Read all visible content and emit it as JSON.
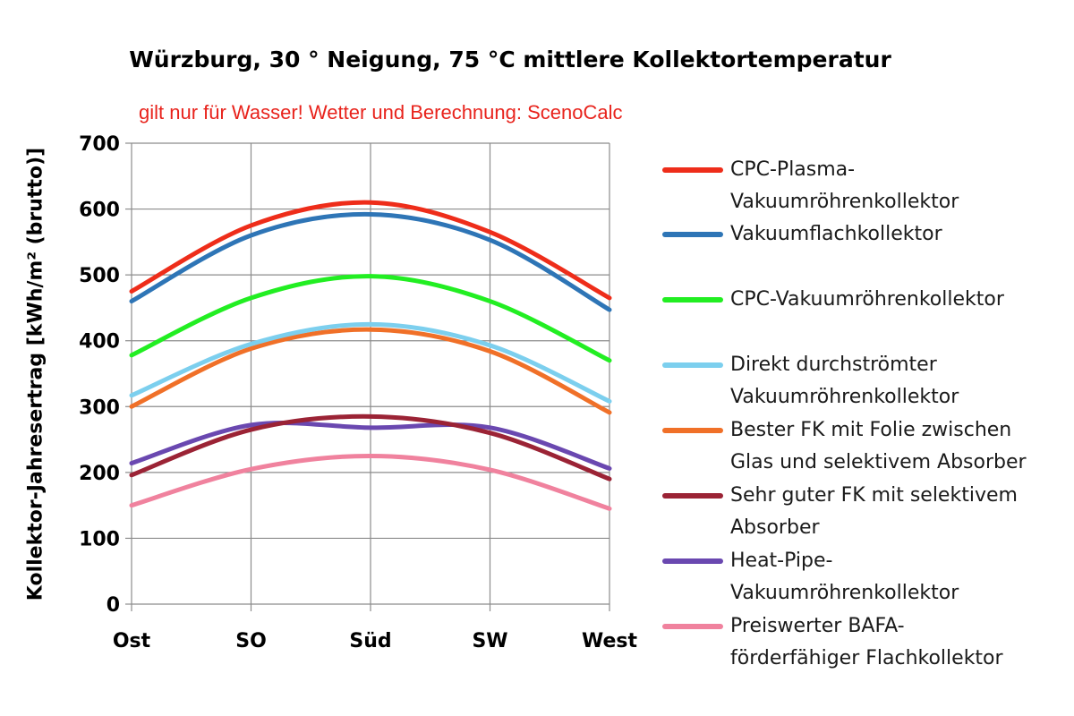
{
  "chart_data": {
    "type": "line",
    "title": "Würzburg, 30 ° Neigung, 75 °C mittlere Kollektortemperatur",
    "subtitle": "gilt nur für Wasser! Wetter und Berechnung: ScenoCalc",
    "xlabel": "",
    "ylabel": "Kollektor-Jahresertrag [kWh/m² (brutto)]",
    "categories": [
      "Ost",
      "SO",
      "Süd",
      "SW",
      "West"
    ],
    "ylim": [
      0,
      700
    ],
    "yticks": [
      0,
      100,
      200,
      300,
      400,
      500,
      600,
      700
    ],
    "grid": true,
    "legend_position": "right",
    "series": [
      {
        "name": "CPC-Plasma-Vakuumröhrenkollektor",
        "name_lines": [
          "CPC-Plasma-",
          "Vakuumröhrenkollektor"
        ],
        "color": "#ee2d1a",
        "values": [
          475,
          575,
          610,
          565,
          465
        ]
      },
      {
        "name": "Vakuumflachkollektor",
        "name_lines": [
          "Vakuumflachkollektor"
        ],
        "color": "#2e75b6",
        "values": [
          460,
          560,
          592,
          553,
          447
        ]
      },
      {
        "name": "CPC-Vakuumröhrenkollektor",
        "name_lines": [
          "CPC-Vakuumröhrenkollektor"
        ],
        "color": "#22ee22",
        "values": [
          378,
          465,
          498,
          460,
          370
        ]
      },
      {
        "name": "Direkt durchströmter Vakuumröhrenkollektor",
        "name_lines": [
          "Direkt durchströmter",
          "Vakuumröhrenkollektor"
        ],
        "color": "#7ccfee",
        "values": [
          317,
          395,
          425,
          393,
          308
        ]
      },
      {
        "name": "Bester FK mit Folie zwischen Glas und selektivem Absorber",
        "name_lines": [
          "Bester FK mit Folie zwischen",
          "Glas und selektivem Absorber"
        ],
        "color": "#f07028",
        "values": [
          300,
          388,
          417,
          384,
          291
        ]
      },
      {
        "name": "Sehr guter FK mit selektivem Absorber",
        "name_lines": [
          "Sehr guter FK mit selektivem",
          "Absorber"
        ],
        "color": "#9b2335",
        "values": [
          196,
          265,
          285,
          260,
          190
        ]
      },
      {
        "name": "Heat-Pipe-Vakuumröhrenkollektor",
        "name_lines": [
          "Heat-Pipe-",
          "Vakuumröhrenkollektor"
        ],
        "color": "#6a48b0",
        "values": [
          214,
          272,
          268,
          268,
          206
        ]
      },
      {
        "name": "Preiswerter BAFA-förderfähiger Flachkollektor",
        "name_lines": [
          "Preiswerter BAFA-",
          "förderfähiger Flachkollektor"
        ],
        "color": "#f0829e",
        "values": [
          150,
          205,
          225,
          204,
          145
        ]
      }
    ]
  }
}
